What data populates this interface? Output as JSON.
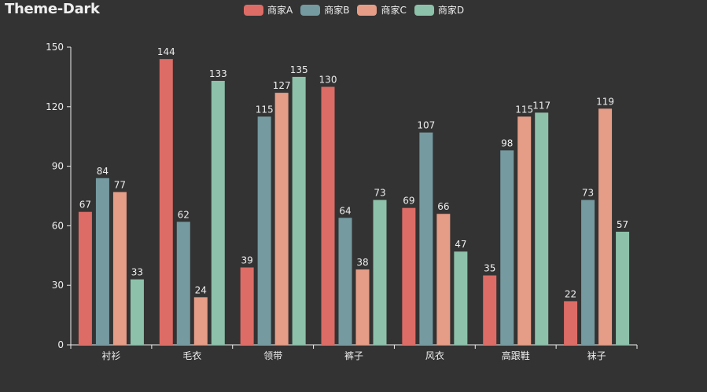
{
  "chart_data": {
    "type": "bar",
    "title": "Theme-Dark",
    "categories": [
      "衬衫",
      "毛衣",
      "领带",
      "裤子",
      "风衣",
      "高跟鞋",
      "袜子"
    ],
    "series": [
      {
        "name": "商家A",
        "color": "#dd6b66",
        "values": [
          67,
          144,
          39,
          130,
          69,
          35,
          22
        ]
      },
      {
        "name": "商家B",
        "color": "#759aa0",
        "values": [
          84,
          62,
          115,
          64,
          107,
          98,
          73
        ]
      },
      {
        "name": "商家C",
        "color": "#e69d87",
        "values": [
          77,
          24,
          127,
          38,
          66,
          115,
          119
        ]
      },
      {
        "name": "商家D",
        "color": "#8dc1a9",
        "values": [
          33,
          133,
          135,
          73,
          47,
          117,
          57
        ]
      }
    ],
    "ylim": [
      0,
      150
    ],
    "yticks": [
      0,
      30,
      60,
      90,
      120,
      150
    ],
    "legend_position": "top-center",
    "grid": false
  }
}
